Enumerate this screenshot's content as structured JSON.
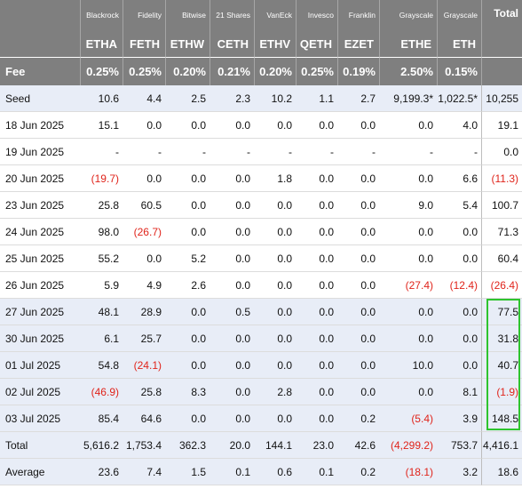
{
  "table": {
    "providers": [
      "Blackrock",
      "Fidelity",
      "Bitwise",
      "21 Shares",
      "VanEck",
      "Invesco",
      "Franklin",
      "Grayscale",
      "Grayscale"
    ],
    "total_label": "Total",
    "tickers": [
      "ETHA",
      "FETH",
      "ETHW",
      "CETH",
      "ETHV",
      "QETH",
      "EZET",
      "ETHE",
      "ETH"
    ],
    "fee_label": "Fee",
    "fees": [
      "0.25%",
      "0.25%",
      "0.20%",
      "0.21%",
      "0.20%",
      "0.25%",
      "0.19%",
      "2.50%",
      "0.15%",
      ""
    ],
    "rows": [
      {
        "label": "Seed",
        "values": [
          "10.6",
          "4.4",
          "2.5",
          "2.3",
          "10.2",
          "1.1",
          "2.7",
          "9,199.3*",
          "1,022.5*",
          "10,255"
        ],
        "neg": []
      },
      {
        "label": "18 Jun 2025",
        "values": [
          "15.1",
          "0.0",
          "0.0",
          "0.0",
          "0.0",
          "0.0",
          "0.0",
          "0.0",
          "4.0",
          "19.1"
        ],
        "neg": []
      },
      {
        "label": "19 Jun 2025",
        "values": [
          "-",
          "-",
          "-",
          "-",
          "-",
          "-",
          "-",
          "-",
          "-",
          "0.0"
        ],
        "neg": []
      },
      {
        "label": "20 Jun 2025",
        "values": [
          "(19.7)",
          "0.0",
          "0.0",
          "0.0",
          "1.8",
          "0.0",
          "0.0",
          "0.0",
          "6.6",
          "(11.3)"
        ],
        "neg": [
          0,
          9
        ]
      },
      {
        "label": "23 Jun 2025",
        "values": [
          "25.8",
          "60.5",
          "0.0",
          "0.0",
          "0.0",
          "0.0",
          "0.0",
          "9.0",
          "5.4",
          "100.7"
        ],
        "neg": []
      },
      {
        "label": "24 Jun 2025",
        "values": [
          "98.0",
          "(26.7)",
          "0.0",
          "0.0",
          "0.0",
          "0.0",
          "0.0",
          "0.0",
          "0.0",
          "71.3"
        ],
        "neg": [
          1
        ]
      },
      {
        "label": "25 Jun 2025",
        "values": [
          "55.2",
          "0.0",
          "5.2",
          "0.0",
          "0.0",
          "0.0",
          "0.0",
          "0.0",
          "0.0",
          "60.4"
        ],
        "neg": []
      },
      {
        "label": "26 Jun 2025",
        "values": [
          "5.9",
          "4.9",
          "2.6",
          "0.0",
          "0.0",
          "0.0",
          "0.0",
          "(27.4)",
          "(12.4)",
          "(26.4)"
        ],
        "neg": [
          7,
          8,
          9
        ]
      },
      {
        "label": "27 Jun 2025",
        "values": [
          "48.1",
          "28.9",
          "0.0",
          "0.5",
          "0.0",
          "0.0",
          "0.0",
          "0.0",
          "0.0",
          "77.5"
        ],
        "neg": []
      },
      {
        "label": "30 Jun 2025",
        "values": [
          "6.1",
          "25.7",
          "0.0",
          "0.0",
          "0.0",
          "0.0",
          "0.0",
          "0.0",
          "0.0",
          "31.8"
        ],
        "neg": []
      },
      {
        "label": "01 Jul 2025",
        "values": [
          "54.8",
          "(24.1)",
          "0.0",
          "0.0",
          "0.0",
          "0.0",
          "0.0",
          "10.0",
          "0.0",
          "40.7"
        ],
        "neg": [
          1
        ]
      },
      {
        "label": "02 Jul 2025",
        "values": [
          "(46.9)",
          "25.8",
          "8.3",
          "0.0",
          "2.8",
          "0.0",
          "0.0",
          "0.0",
          "8.1",
          "(1.9)"
        ],
        "neg": [
          0,
          9
        ]
      },
      {
        "label": "03 Jul 2025",
        "values": [
          "85.4",
          "64.6",
          "0.0",
          "0.0",
          "0.0",
          "0.0",
          "0.2",
          "(5.4)",
          "3.9",
          "148.5"
        ],
        "neg": [
          7
        ]
      },
      {
        "label": "Total",
        "values": [
          "5,616.2",
          "1,753.4",
          "362.3",
          "20.0",
          "144.1",
          "23.0",
          "42.6",
          "(4,299.2)",
          "753.7",
          "4,416.1"
        ],
        "neg": [
          7
        ]
      },
      {
        "label": "Average",
        "values": [
          "23.6",
          "7.4",
          "1.5",
          "0.1",
          "0.6",
          "0.1",
          "0.2",
          "(18.1)",
          "3.2",
          "18.6"
        ],
        "neg": [
          7
        ]
      }
    ],
    "shaded_rows": [
      0,
      8,
      9,
      10,
      11,
      12,
      13,
      14
    ],
    "colors": {
      "header_bg": "#7f7f7f",
      "shade": "#e8edf7",
      "negative": "#e0241b",
      "highlight": "#2ec42e"
    }
  }
}
